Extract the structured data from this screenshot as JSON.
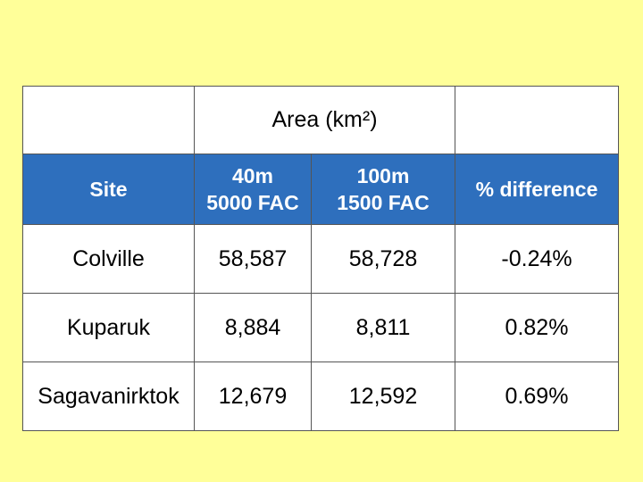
{
  "table": {
    "group_header": "Area (km²)",
    "columns": [
      [
        "Site"
      ],
      [
        "40m",
        "5000 FAC"
      ],
      [
        "100m",
        "1500 FAC"
      ],
      [
        "% difference"
      ]
    ],
    "rows": [
      [
        "Colville",
        "58,587",
        "58,728",
        "-0.24%"
      ],
      [
        "Kuparuk",
        "8,884",
        "8,811",
        "0.82%"
      ],
      [
        "Sagavanirktok",
        "12,679",
        "12,592",
        "0.69%"
      ]
    ]
  }
}
